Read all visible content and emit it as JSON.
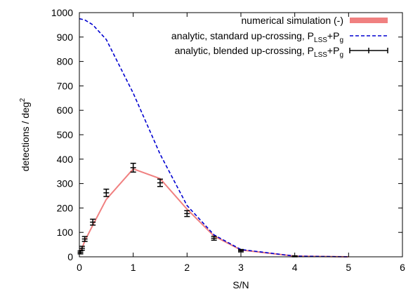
{
  "chart_data": {
    "type": "line",
    "xlabel": "S/N",
    "ylabel_main": "detections / deg",
    "ylabel_sup": "2",
    "xlim": [
      0,
      6
    ],
    "ylim": [
      0,
      1000
    ],
    "xticks": [
      "0",
      "1",
      "2",
      "3",
      "4",
      "5",
      "6"
    ],
    "yticks": [
      "0",
      "100",
      "200",
      "300",
      "400",
      "500",
      "600",
      "700",
      "800",
      "900",
      "1000"
    ],
    "grid": false,
    "legend_position": "top-right",
    "series": [
      {
        "name": "numerical simulation (-)",
        "style": "thick-solid",
        "color": "#f08080",
        "x": [
          0,
          0.05,
          0.1,
          0.25,
          0.5,
          1.0,
          1.5,
          2.0,
          2.5,
          3.0,
          4.0,
          5.0
        ],
        "y": [
          20,
          35,
          65,
          130,
          235,
          360,
          320,
          195,
          85,
          28,
          3,
          0
        ]
      },
      {
        "name_parts": [
          "analytic, standard up-crossing, P",
          "LSS",
          "+P",
          "g"
        ],
        "style": "dashed",
        "color": "#0000d0",
        "x": [
          0,
          0.1,
          0.25,
          0.5,
          1.0,
          1.5,
          2.0,
          2.5,
          3.0,
          4.0,
          5.0
        ],
        "y": [
          975,
          970,
          950,
          890,
          670,
          420,
          210,
          90,
          30,
          3,
          0
        ]
      },
      {
        "name_parts": [
          "analytic, blended up-crossing, P",
          "LSS",
          "+P",
          "g"
        ],
        "style": "errorbars",
        "color": "#000000",
        "x": [
          0.02,
          0.05,
          0.1,
          0.25,
          0.5,
          1.0,
          1.5,
          2.0,
          2.5,
          3.0,
          4.0
        ],
        "y": [
          18,
          35,
          73,
          142,
          262,
          365,
          303,
          177,
          76,
          25,
          2
        ],
        "err": [
          6,
          8,
          10,
          12,
          15,
          18,
          15,
          12,
          8,
          5,
          2
        ]
      }
    ]
  }
}
